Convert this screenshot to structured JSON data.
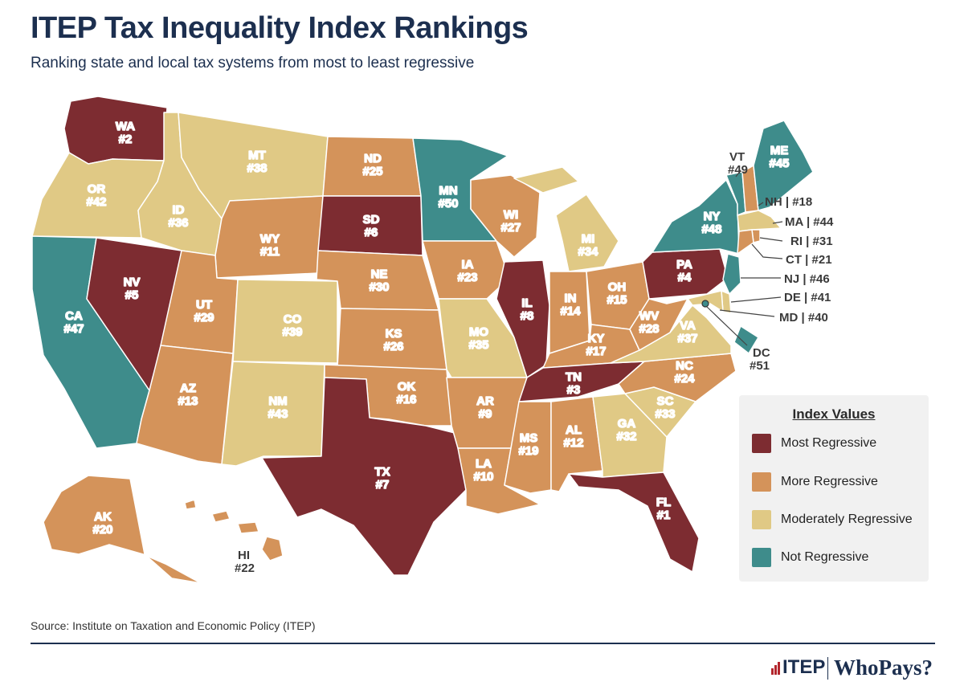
{
  "title": "ITEP Tax Inequality Index Rankings",
  "subtitle": "Ranking state and local tax systems from most to least regressive",
  "colors": {
    "most": "#7d2c31",
    "more": "#d4935a",
    "moderate": "#e0c985",
    "not": "#3e8c8b",
    "border": "#ffffff"
  },
  "states": [
    {
      "abbr": "WA",
      "rank": "#2",
      "category": "most"
    },
    {
      "abbr": "OR",
      "rank": "#42",
      "category": "moderate"
    },
    {
      "abbr": "CA",
      "rank": "#47",
      "category": "not"
    },
    {
      "abbr": "NV",
      "rank": "#5",
      "category": "most"
    },
    {
      "abbr": "ID",
      "rank": "#36",
      "category": "moderate"
    },
    {
      "abbr": "MT",
      "rank": "#38",
      "category": "moderate"
    },
    {
      "abbr": "WY",
      "rank": "#11",
      "category": "more"
    },
    {
      "abbr": "UT",
      "rank": "#29",
      "category": "more"
    },
    {
      "abbr": "AZ",
      "rank": "#13",
      "category": "more"
    },
    {
      "abbr": "CO",
      "rank": "#39",
      "category": "moderate"
    },
    {
      "abbr": "NM",
      "rank": "#43",
      "category": "moderate"
    },
    {
      "abbr": "ND",
      "rank": "#25",
      "category": "more"
    },
    {
      "abbr": "SD",
      "rank": "#6",
      "category": "most"
    },
    {
      "abbr": "NE",
      "rank": "#30",
      "category": "more"
    },
    {
      "abbr": "KS",
      "rank": "#26",
      "category": "more"
    },
    {
      "abbr": "OK",
      "rank": "#16",
      "category": "more"
    },
    {
      "abbr": "TX",
      "rank": "#7",
      "category": "most"
    },
    {
      "abbr": "MN",
      "rank": "#50",
      "category": "not"
    },
    {
      "abbr": "IA",
      "rank": "#23",
      "category": "more"
    },
    {
      "abbr": "MO",
      "rank": "#35",
      "category": "moderate"
    },
    {
      "abbr": "AR",
      "rank": "#9",
      "category": "more"
    },
    {
      "abbr": "LA",
      "rank": "#10",
      "category": "more"
    },
    {
      "abbr": "WI",
      "rank": "#27",
      "category": "more"
    },
    {
      "abbr": "IL",
      "rank": "#8",
      "category": "most"
    },
    {
      "abbr": "MI",
      "rank": "#34",
      "category": "moderate"
    },
    {
      "abbr": "IN",
      "rank": "#14",
      "category": "more"
    },
    {
      "abbr": "OH",
      "rank": "#15",
      "category": "more"
    },
    {
      "abbr": "KY",
      "rank": "#17",
      "category": "more"
    },
    {
      "abbr": "TN",
      "rank": "#3",
      "category": "most"
    },
    {
      "abbr": "MS",
      "rank": "#19",
      "category": "more"
    },
    {
      "abbr": "AL",
      "rank": "#12",
      "category": "more"
    },
    {
      "abbr": "GA",
      "rank": "#32",
      "category": "moderate"
    },
    {
      "abbr": "FL",
      "rank": "#1",
      "category": "most"
    },
    {
      "abbr": "SC",
      "rank": "#33",
      "category": "moderate"
    },
    {
      "abbr": "NC",
      "rank": "#24",
      "category": "more"
    },
    {
      "abbr": "VA",
      "rank": "#37",
      "category": "moderate"
    },
    {
      "abbr": "WV",
      "rank": "#28",
      "category": "more"
    },
    {
      "abbr": "PA",
      "rank": "#4",
      "category": "most"
    },
    {
      "abbr": "NY",
      "rank": "#48",
      "category": "not"
    },
    {
      "abbr": "VT",
      "rank": "#49",
      "category": "not"
    },
    {
      "abbr": "ME",
      "rank": "#45",
      "category": "not"
    },
    {
      "abbr": "NH",
      "rank": "#18",
      "category": "more"
    },
    {
      "abbr": "MA",
      "rank": "#44",
      "category": "moderate"
    },
    {
      "abbr": "RI",
      "rank": "#31",
      "category": "more"
    },
    {
      "abbr": "CT",
      "rank": "#21",
      "category": "more"
    },
    {
      "abbr": "NJ",
      "rank": "#46",
      "category": "not"
    },
    {
      "abbr": "DE",
      "rank": "#41",
      "category": "moderate"
    },
    {
      "abbr": "MD",
      "rank": "#40",
      "category": "moderate"
    },
    {
      "abbr": "DC",
      "rank": "#51",
      "category": "not"
    },
    {
      "abbr": "AK",
      "rank": "#20",
      "category": "more"
    },
    {
      "abbr": "HI",
      "rank": "#22",
      "category": "more"
    }
  ],
  "labels": {
    "VT": "VT",
    "VT_rank": "#49",
    "NH": "NH | #18",
    "MA": "MA | #44",
    "RI": "RI | #31",
    "CT": "CT | #21",
    "NJ": "NJ | #46",
    "DE": "DE | #41",
    "MD": "MD | #40",
    "DC": "DC",
    "DC_rank": "#51",
    "HI": "HI",
    "HI_rank": "#22"
  },
  "legend": {
    "title": "Index Values",
    "items": [
      {
        "label": "Most Regressive",
        "category": "most"
      },
      {
        "label": "More Regressive",
        "category": "more"
      },
      {
        "label": "Moderately Regressive",
        "category": "moderate"
      },
      {
        "label": "Not Regressive",
        "category": "not"
      }
    ]
  },
  "source": "Source: Institute on Taxation and Economic Policy (ITEP)",
  "logos": {
    "itep": "ITEP",
    "whopays": "WhoPays?"
  }
}
